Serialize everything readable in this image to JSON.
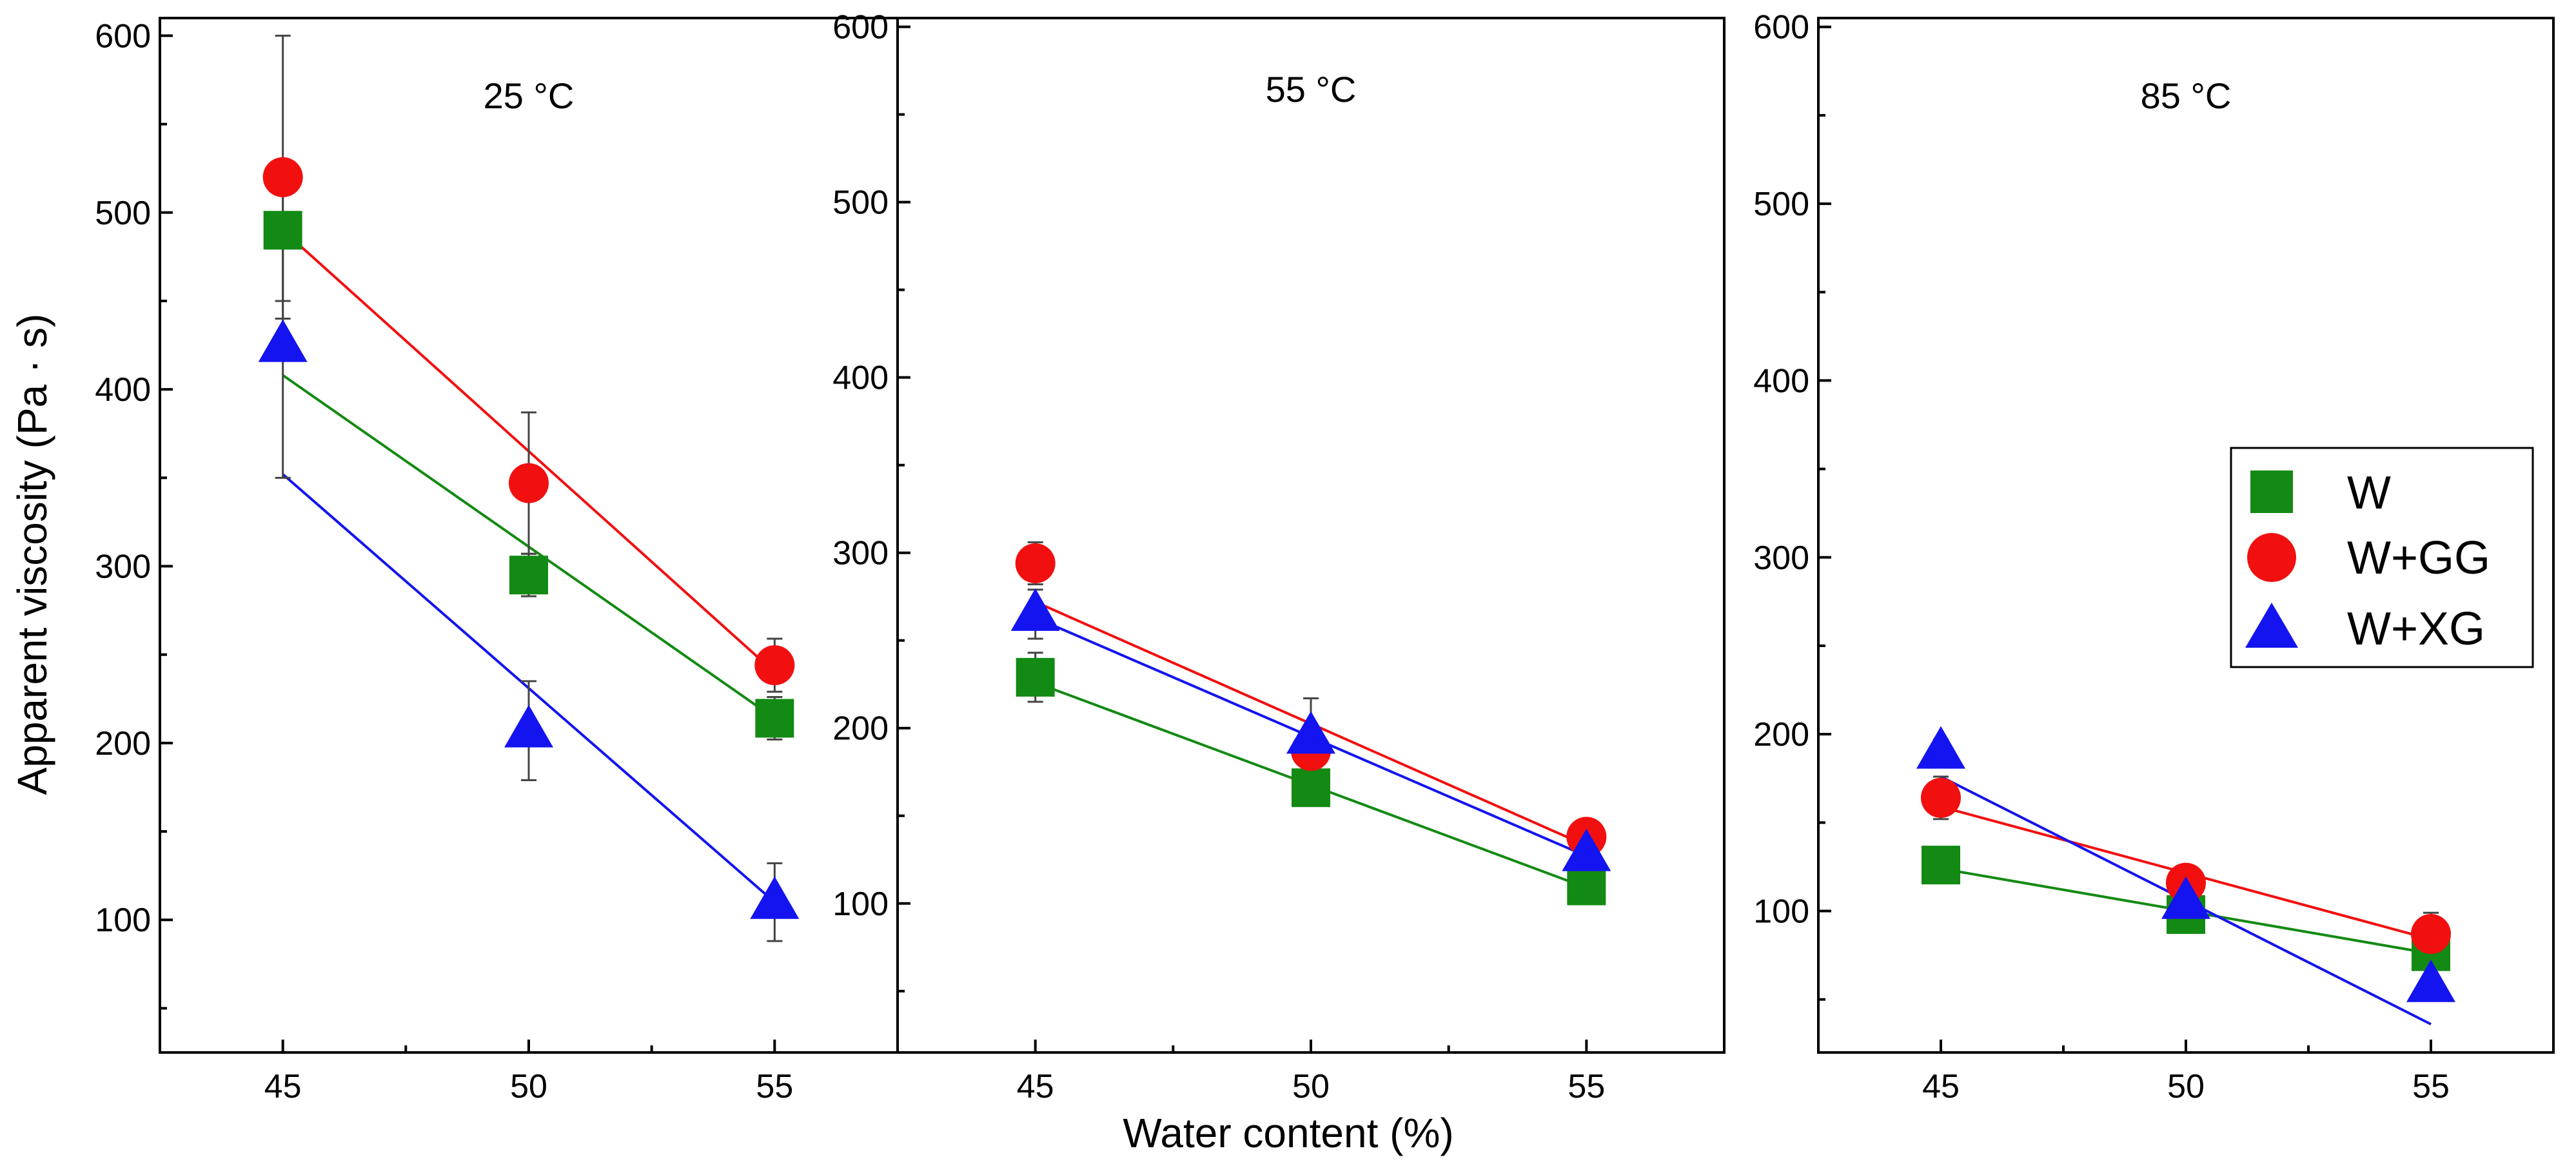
{
  "chart_data": {
    "type": "scatter",
    "ylabel": "Apparent viscosity (Pa · s)",
    "xlabel": "Water content (%)",
    "x": [
      45,
      50,
      55
    ],
    "xticks": [
      45,
      50,
      55
    ],
    "yticks": [
      100,
      200,
      300,
      400,
      500,
      600
    ],
    "legend": {
      "position": "right",
      "entries": [
        {
          "name": "W",
          "marker": "square",
          "color": "#138A13"
        },
        {
          "name": "W+GG",
          "marker": "circle",
          "color": "#F20F0F"
        },
        {
          "name": "W+XG",
          "marker": "triangle",
          "color": "#1414F0"
        }
      ]
    },
    "panels": [
      {
        "title": "25 °C",
        "xlim": [
          42.5,
          57.5
        ],
        "ylim": [
          25,
          610
        ],
        "series": [
          {
            "name": "W",
            "values": [
              490,
              295,
              214
            ],
            "errors": [
              40,
              12,
              12
            ],
            "fit": [
              408,
              214
            ]
          },
          {
            "name": "W+GG",
            "values": [
              520,
              347,
              244
            ],
            "errors": [
              80,
              40,
              15
            ],
            "fit": [
              490,
              240
            ]
          },
          {
            "name": "W+XG",
            "values": [
              425,
              207,
              110
            ],
            "errors": [
              75,
              28,
              22
            ],
            "fit": [
              352,
              110
            ]
          }
        ]
      },
      {
        "title": "55 °C",
        "xlim": [
          42.5,
          57.5
        ],
        "ylim": [
          15,
          605
        ],
        "series": [
          {
            "name": "W",
            "values": [
              229,
              166,
              110
            ],
            "errors": [
              14,
              8,
              7
            ],
            "fit": [
              226,
              109
            ]
          },
          {
            "name": "W+GG",
            "values": [
              294,
              187,
              138
            ],
            "errors": [
              12,
              10,
              8
            ],
            "fit": [
              272,
              133
            ]
          },
          {
            "name": "W+XG",
            "values": [
              265,
              195,
              128
            ],
            "errors": [
              14,
              22,
              7
            ],
            "fit": [
              263,
              127
            ]
          }
        ]
      },
      {
        "title": "85 °C",
        "xlim": [
          42.5,
          57.5
        ],
        "ylim": [
          20,
          605
        ],
        "series": [
          {
            "name": "W",
            "values": [
              126,
              98,
              77
            ],
            "errors": [
              6,
              5,
              5
            ],
            "fit": [
              124,
              76
            ]
          },
          {
            "name": "W+GG",
            "values": [
              164,
              116,
              87
            ],
            "errors": [
              12,
              6,
              12
            ],
            "fit": [
              159,
              84
            ]
          },
          {
            "name": "W+XG",
            "values": [
              190,
              105,
              58
            ],
            "errors": [
              7,
              6,
              5
            ],
            "fit": [
              176,
              36
            ]
          }
        ]
      }
    ]
  }
}
